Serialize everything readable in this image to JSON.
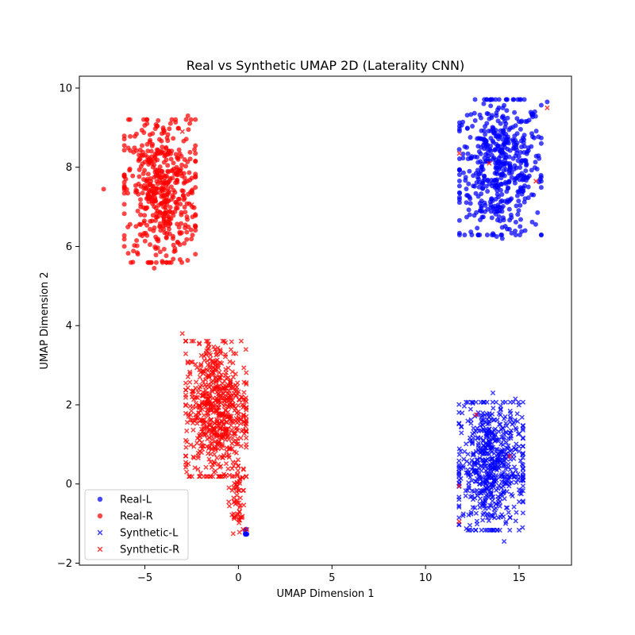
{
  "chart_data": {
    "type": "scatter",
    "title": "Real vs Synthetic UMAP 2D (Laterality CNN)",
    "xlabel": "UMAP Dimension 1",
    "ylabel": "UMAP Dimension 2",
    "xlim": [
      -8.5,
      17.8
    ],
    "ylim": [
      -2.05,
      10.3
    ],
    "xticks": [
      -5,
      0,
      5,
      10,
      15
    ],
    "xtick_labels": [
      "−5",
      "0",
      "5",
      "10",
      "15"
    ],
    "yticks": [
      -2,
      0,
      2,
      4,
      6,
      8,
      10
    ],
    "ytick_labels": [
      "−2",
      "0",
      "2",
      "4",
      "6",
      "8",
      "10"
    ],
    "grid": false,
    "legend_position": "lower-left",
    "series": [
      {
        "name": "Real-L",
        "marker": "circle",
        "color": "#0000ff",
        "clusters": [
          {
            "center_x": 14.0,
            "center_y": 8.0,
            "spread_x": 1.15,
            "spread_y": 0.9,
            "count": 520
          },
          {
            "center_x": 0.4,
            "center_y": -1.2,
            "spread_x": 0.05,
            "spread_y": 0.04,
            "count": 6
          }
        ],
        "points": [
          [
            11.8,
            8.45
          ],
          [
            12.2,
            8.5
          ],
          [
            16.5,
            9.65
          ],
          [
            13.8,
            6.25
          ],
          [
            14.1,
            6.2
          ]
        ]
      },
      {
        "name": "Real-R",
        "marker": "circle",
        "color": "#ff0000",
        "clusters": [
          {
            "center_x": -4.2,
            "center_y": 7.4,
            "spread_x": 1.0,
            "spread_y": 0.95,
            "count": 500
          }
        ],
        "points": [
          [
            -7.2,
            7.45
          ],
          [
            -2.7,
            9.3
          ],
          [
            -4.5,
            5.45
          ],
          [
            -3.5,
            6.2
          ]
        ]
      },
      {
        "name": "Synthetic-L",
        "marker": "x",
        "color": "#0000ff",
        "clusters": [
          {
            "center_x": 13.5,
            "center_y": 0.45,
            "spread_x": 0.9,
            "spread_y": 0.85,
            "count": 600
          }
        ],
        "points": [
          [
            13.6,
            2.3
          ],
          [
            14.8,
            2.15
          ],
          [
            12.0,
            -0.8
          ],
          [
            14.2,
            -1.45
          ],
          [
            11.8,
            0.1
          ],
          [
            15.2,
            1.4
          ]
        ]
      },
      {
        "name": "Synthetic-R",
        "marker": "x",
        "color": "#ff0000",
        "clusters": [
          {
            "center_x": -1.2,
            "center_y": 1.9,
            "spread_x": 0.85,
            "spread_y": 0.9,
            "count": 620
          },
          {
            "center_x": -0.1,
            "center_y": -0.4,
            "spread_x": 0.22,
            "spread_y": 0.45,
            "count": 60
          }
        ],
        "points": [
          [
            -3.0,
            3.8
          ],
          [
            0.4,
            3.4
          ],
          [
            0.45,
            -1.15
          ],
          [
            11.8,
            -0.05
          ],
          [
            11.8,
            -0.95
          ],
          [
            12.7,
            1.75
          ],
          [
            14.5,
            0.7
          ],
          [
            13.4,
            8.1
          ],
          [
            11.8,
            8.35
          ],
          [
            15.9,
            7.65
          ],
          [
            16.5,
            9.5
          ],
          [
            -2.5,
            7.05
          ],
          [
            -3.0,
            8.9
          ]
        ]
      }
    ]
  }
}
